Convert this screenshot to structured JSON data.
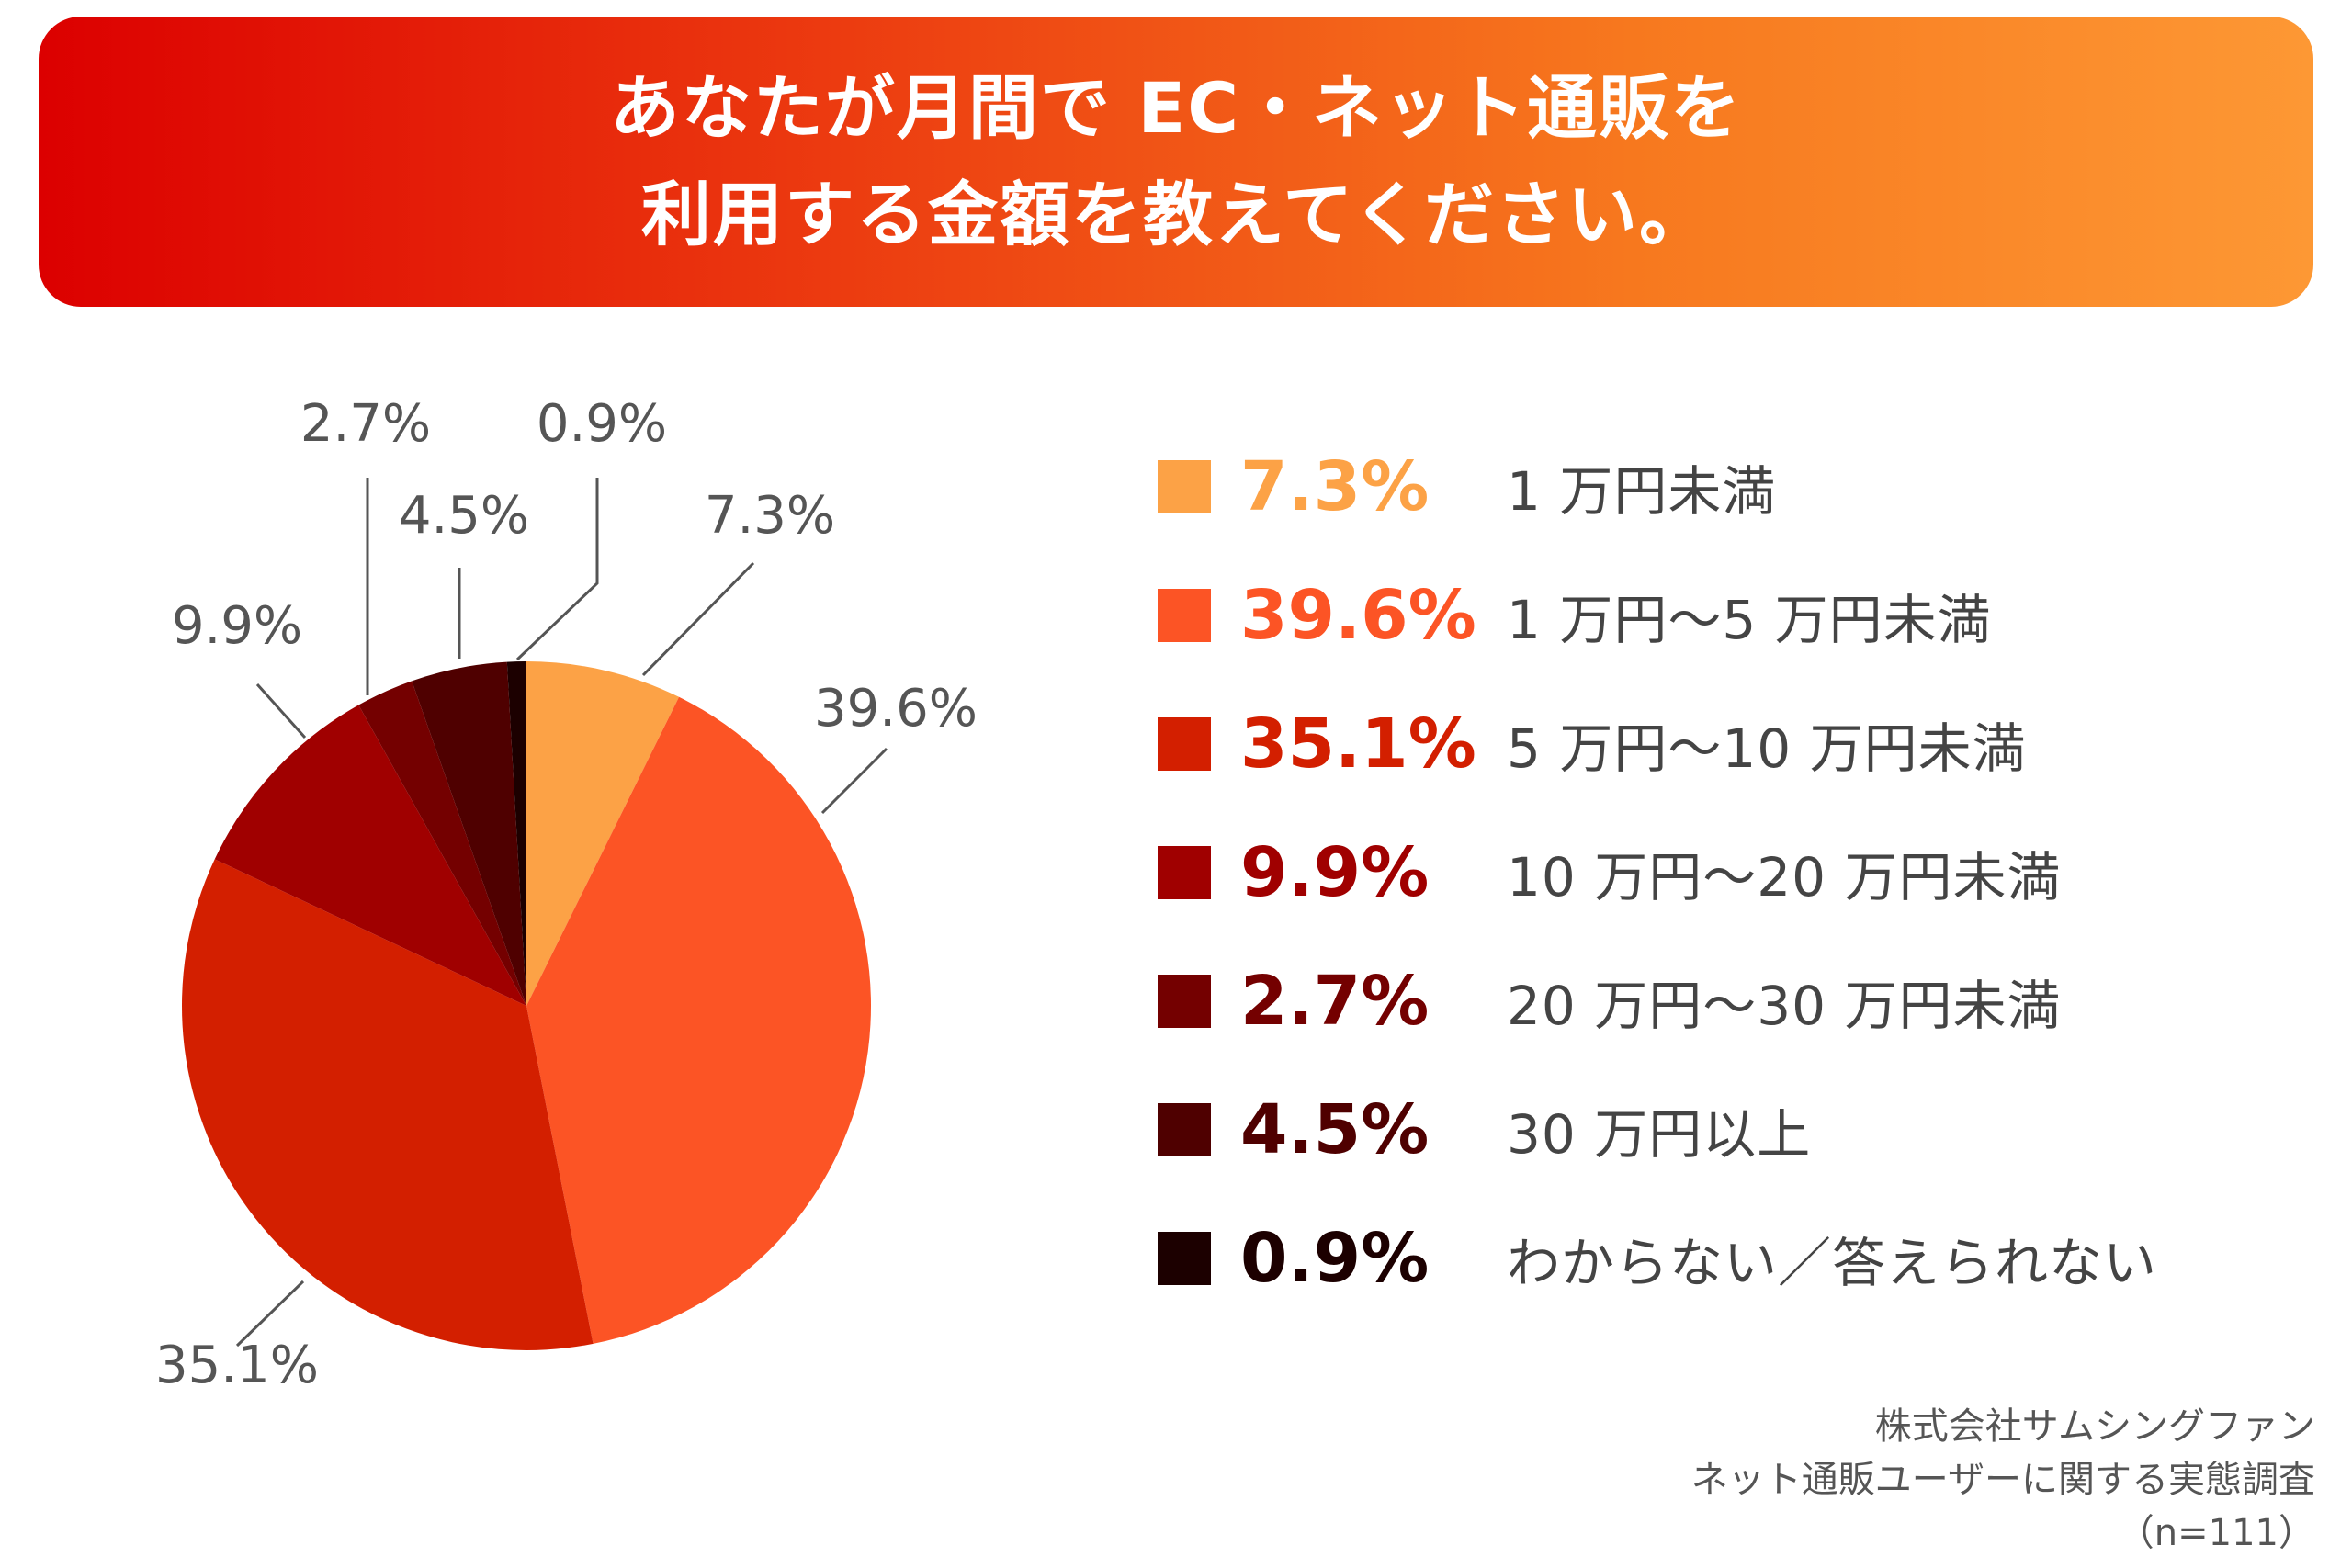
{
  "title": {
    "line1": "あなたが月間で EC・ネット通販を",
    "line2": "利用する金額を教えてください。"
  },
  "chart_data": {
    "type": "pie",
    "unit": "%",
    "categories": [
      "1万円未満",
      "1万円〜5万円未満",
      "5万円〜10万円未満",
      "10万円〜20万円未満",
      "20万円〜30万円未満",
      "30万円以上",
      "わからない／答えられない"
    ],
    "values": [
      7.3,
      39.6,
      35.1,
      9.9,
      2.7,
      4.5,
      0.9
    ],
    "value_labels": [
      "7.3%",
      "39.6%",
      "35.1%",
      "9.9%",
      "2.7%",
      "4.5%",
      "0.9%"
    ],
    "colors": [
      "#fca246",
      "#fc5425",
      "#d31f00",
      "#a00000",
      "#740000",
      "#4f0000",
      "#1c0000"
    ],
    "start_angle": "12 o'clock, clockwise",
    "legend_position": "right"
  },
  "legend": [
    {
      "pct": "7.3%",
      "label": "1 万円未満",
      "color": "#fca246"
    },
    {
      "pct": "39.6%",
      "label": "1 万円〜5 万円未満",
      "color": "#fc5425"
    },
    {
      "pct": "35.1%",
      "label": "5 万円〜10 万円未満",
      "color": "#d31f00"
    },
    {
      "pct": "9.9%",
      "label": "10 万円〜20 万円未満",
      "color": "#a00000"
    },
    {
      "pct": "2.7%",
      "label": "20 万円〜30 万円未満",
      "color": "#740000"
    },
    {
      "pct": "4.5%",
      "label": "30 万円以上",
      "color": "#4f0000"
    },
    {
      "pct": "0.9%",
      "label": "わからない／答えられない",
      "color": "#1c0000"
    }
  ],
  "source": {
    "line1": "株式会社サムシングファン",
    "line2": "ネット通販ユーザーに関する実態調査",
    "line3": "（n=111）"
  }
}
